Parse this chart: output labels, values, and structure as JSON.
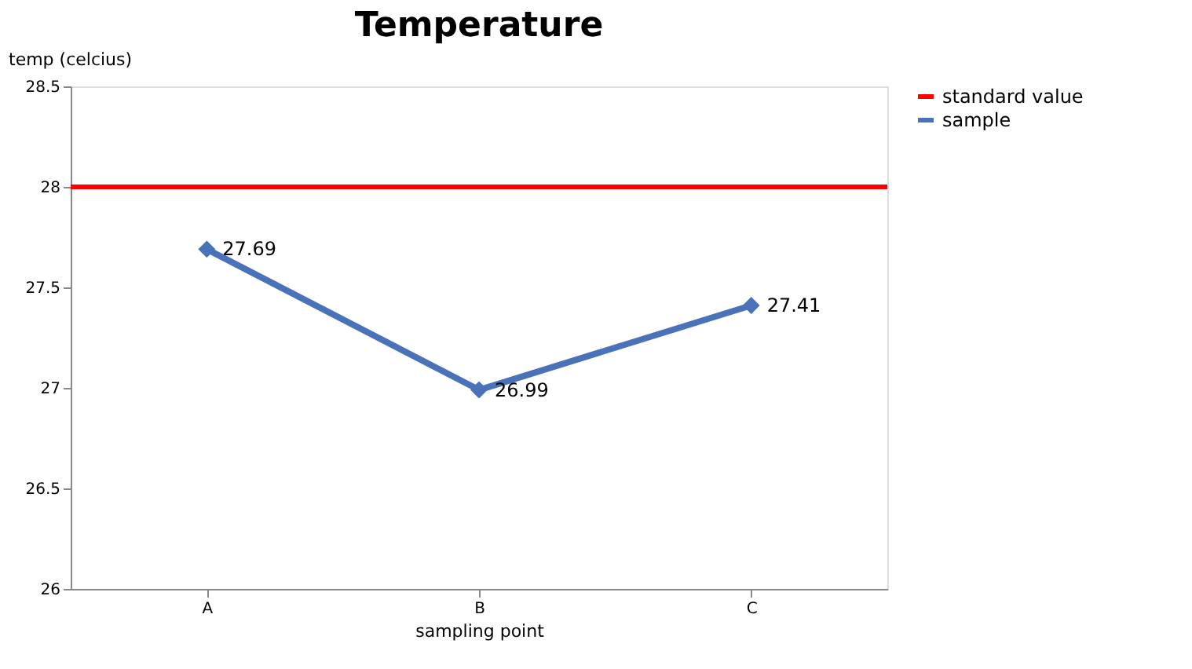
{
  "chart_data": {
    "type": "line",
    "title": "Temperature",
    "xlabel": "sampling point",
    "ylabel": "temp (celcius)",
    "categories": [
      "A",
      "B",
      "C"
    ],
    "series": [
      {
        "name": "sample",
        "color": "#4a72b8",
        "values": [
          27.69,
          26.99,
          27.41
        ]
      }
    ],
    "ref_lines": [
      {
        "axis": "y",
        "value": 28,
        "label": "standard value",
        "color": "#ff0000",
        "line_style": "solid"
      }
    ],
    "ylim": [
      26,
      28.5
    ],
    "yticks": [
      26,
      26.5,
      27,
      27.5,
      28,
      28.5
    ],
    "marker": "diamond",
    "line_style": "solid",
    "data_labels": true,
    "grid": false,
    "legend": "right"
  }
}
